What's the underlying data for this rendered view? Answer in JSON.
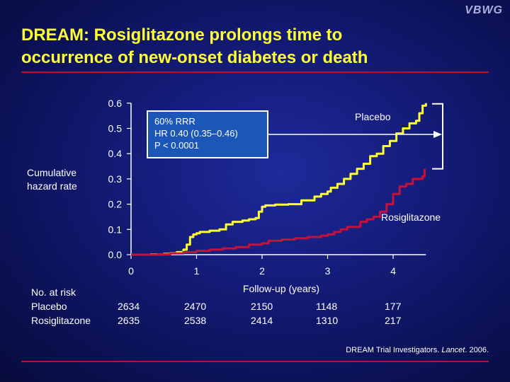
{
  "watermark": "VBWG",
  "slide": {
    "title_line1": "DREAM: Rosiglitazone prolongs time to",
    "title_line2": "occurrence of new-onset diabetes or death",
    "citation_prefix": "DREAM Trial Investigators. ",
    "citation_journal": "Lancet",
    "citation_suffix": ". 2006."
  },
  "stats_box": {
    "line1": "60% RRR",
    "line2": "HR 0.40 (0.35–0.46)",
    "line3": "P < 0.0001"
  },
  "colors": {
    "placebo": "#ffff33",
    "rosiglitazone": "#c8103a",
    "title": "#ffff33",
    "rule": "#b8102e",
    "stats_fill": "#1c57b8"
  },
  "chart_data": {
    "type": "line",
    "xlabel": "Follow-up (years)",
    "ylabel_line1": "Cumulative",
    "ylabel_line2": "hazard rate",
    "x_ticks": [
      "0",
      "1",
      "2",
      "3",
      "4"
    ],
    "y_ticks": [
      "0.0",
      "0.1",
      "0.2",
      "0.3",
      "0.4",
      "0.5",
      "0.6"
    ],
    "xlim": [
      0,
      4.5
    ],
    "ylim": [
      0,
      0.6
    ],
    "grid": false,
    "series": [
      {
        "name": "Placebo",
        "points": [
          [
            0,
            0
          ],
          [
            0.3,
            0.001
          ],
          [
            0.5,
            0.003
          ],
          [
            0.6,
            0.006
          ],
          [
            0.7,
            0.01
          ],
          [
            0.8,
            0.02
          ],
          [
            0.85,
            0.04
          ],
          [
            0.9,
            0.07
          ],
          [
            0.95,
            0.08
          ],
          [
            1.0,
            0.085
          ],
          [
            1.05,
            0.09
          ],
          [
            1.2,
            0.095
          ],
          [
            1.35,
            0.1
          ],
          [
            1.45,
            0.12
          ],
          [
            1.55,
            0.13
          ],
          [
            1.7,
            0.135
          ],
          [
            1.8,
            0.14
          ],
          [
            1.9,
            0.145
          ],
          [
            1.95,
            0.17
          ],
          [
            2.0,
            0.19
          ],
          [
            2.05,
            0.195
          ],
          [
            2.2,
            0.198
          ],
          [
            2.4,
            0.2
          ],
          [
            2.6,
            0.215
          ],
          [
            2.8,
            0.23
          ],
          [
            2.9,
            0.24
          ],
          [
            3.0,
            0.25
          ],
          [
            3.05,
            0.265
          ],
          [
            3.15,
            0.28
          ],
          [
            3.25,
            0.3
          ],
          [
            3.35,
            0.32
          ],
          [
            3.45,
            0.34
          ],
          [
            3.55,
            0.36
          ],
          [
            3.65,
            0.39
          ],
          [
            3.75,
            0.4
          ],
          [
            3.85,
            0.43
          ],
          [
            3.95,
            0.45
          ],
          [
            4.05,
            0.48
          ],
          [
            4.15,
            0.5
          ],
          [
            4.25,
            0.52
          ],
          [
            4.35,
            0.53
          ],
          [
            4.4,
            0.56
          ],
          [
            4.45,
            0.59
          ],
          [
            4.5,
            0.6
          ]
        ]
      },
      {
        "name": "Rosiglitazone",
        "points": [
          [
            0,
            0
          ],
          [
            0.4,
            0.001
          ],
          [
            0.6,
            0.005
          ],
          [
            0.8,
            0.01
          ],
          [
            1.0,
            0.015
          ],
          [
            1.2,
            0.02
          ],
          [
            1.4,
            0.025
          ],
          [
            1.6,
            0.03
          ],
          [
            1.8,
            0.04
          ],
          [
            2.0,
            0.045
          ],
          [
            2.1,
            0.055
          ],
          [
            2.3,
            0.06
          ],
          [
            2.5,
            0.065
          ],
          [
            2.7,
            0.07
          ],
          [
            2.9,
            0.075
          ],
          [
            3.0,
            0.08
          ],
          [
            3.1,
            0.09
          ],
          [
            3.2,
            0.1
          ],
          [
            3.3,
            0.11
          ],
          [
            3.5,
            0.13
          ],
          [
            3.6,
            0.14
          ],
          [
            3.7,
            0.15
          ],
          [
            3.8,
            0.17
          ],
          [
            3.9,
            0.2
          ],
          [
            4.0,
            0.24
          ],
          [
            4.1,
            0.27
          ],
          [
            4.2,
            0.28
          ],
          [
            4.3,
            0.3
          ],
          [
            4.4,
            0.3
          ],
          [
            4.45,
            0.31
          ],
          [
            4.48,
            0.34
          ]
        ]
      }
    ],
    "annotation_label": "",
    "at_risk": {
      "heading": "No. at risk",
      "rows": [
        {
          "label": "Placebo",
          "values": [
            "2634",
            "2470",
            "2150",
            "1148",
            "177"
          ]
        },
        {
          "label": "Rosiglitazone",
          "values": [
            "2635",
            "2538",
            "2414",
            "1310",
            "217"
          ]
        }
      ]
    }
  }
}
